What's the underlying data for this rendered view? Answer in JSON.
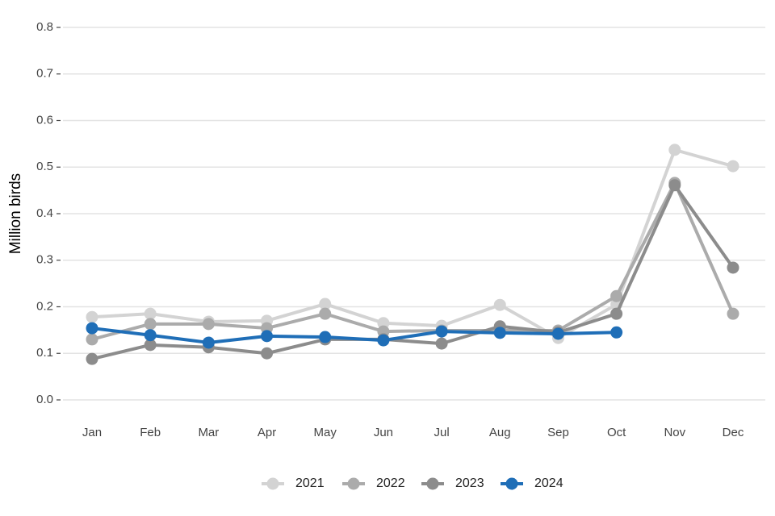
{
  "chart_data": {
    "type": "line",
    "y_label": "Million birds",
    "categories": [
      "Jan",
      "Feb",
      "Mar",
      "Apr",
      "May",
      "Jun",
      "Jul",
      "Aug",
      "Sep",
      "Oct",
      "Nov",
      "Dec"
    ],
    "series": [
      {
        "name": "2021",
        "color": "#d3d3d3",
        "values": [
          0.178,
          0.185,
          0.168,
          0.17,
          0.206,
          0.165,
          0.159,
          0.204,
          0.133,
          0.205,
          0.537,
          0.502
        ]
      },
      {
        "name": "2022",
        "color": "#ababab",
        "values": [
          0.13,
          0.163,
          0.163,
          0.154,
          0.185,
          0.147,
          0.149,
          0.149,
          0.149,
          0.223,
          0.466,
          0.185
        ]
      },
      {
        "name": "2023",
        "color": "#8c8c8c",
        "values": [
          0.088,
          0.118,
          0.113,
          0.1,
          0.13,
          0.13,
          0.121,
          0.158,
          0.145,
          0.185,
          0.461,
          0.284
        ]
      },
      {
        "name": "2024",
        "color": "#1f6eb7",
        "values": [
          0.154,
          0.139,
          0.123,
          0.137,
          0.135,
          0.128,
          0.147,
          0.144,
          0.142,
          0.145,
          null,
          null
        ]
      }
    ],
    "ylim": [
      0,
      0.8
    ],
    "yticks": [
      {
        "value": 0,
        "label": "0.0"
      },
      0.1,
      0.2,
      0.3,
      0.4,
      0.5,
      0.6,
      0.7,
      0.8
    ],
    "grid": true,
    "legend": "bottom"
  }
}
